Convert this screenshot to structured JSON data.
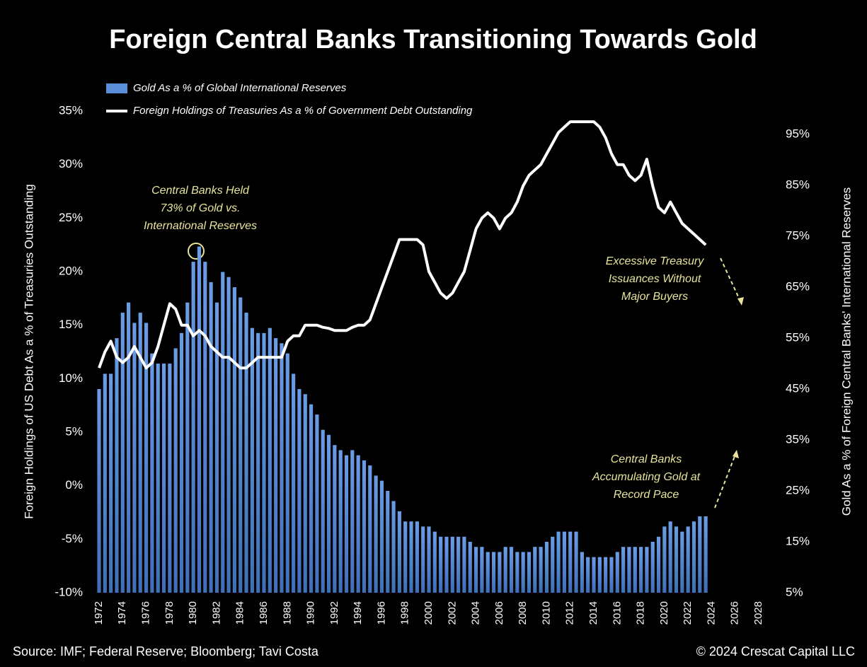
{
  "chart_data": {
    "type": "bar-line",
    "title": "Foreign Central Banks Transitioning Towards Gold",
    "source": "Source: IMF; Federal Reserve; Bloomberg; Tavi Costa",
    "copyright": "© 2024 Crescat Capital LLC",
    "y_label": "Foreign Holdings of US Debt As a % of  Treasuries Outstanding",
    "y2_label": "Gold As a % of Foreign Central Banks' International Reserves",
    "xlim": [
      1971.7,
      2028.6
    ],
    "xticks": [
      1972,
      1974,
      1976,
      1978,
      1980,
      1982,
      1984,
      1986,
      1988,
      1990,
      1992,
      1994,
      1996,
      1998,
      2000,
      2002,
      2004,
      2006,
      2008,
      2010,
      2012,
      2014,
      2016,
      2018,
      2020,
      2022,
      2024,
      2026,
      2028
    ],
    "ylim": [
      -10,
      35
    ],
    "yticks": [
      {
        "value": -10,
        "label": "-10%"
      },
      {
        "value": -5,
        "label": "-5%"
      },
      {
        "value": 0,
        "label": "0%"
      },
      {
        "value": 5,
        "label": "5%"
      },
      {
        "value": 10,
        "label": "10%"
      },
      {
        "value": 15,
        "label": "15%"
      },
      {
        "value": 20,
        "label": "20%"
      },
      {
        "value": 25,
        "label": "25%"
      },
      {
        "value": 30,
        "label": "30%"
      },
      {
        "value": 35,
        "label": "35%"
      }
    ],
    "y2lim": [
      5,
      99.6
    ],
    "y2ticks": [
      {
        "value": 5,
        "label": "5%"
      },
      {
        "value": 15,
        "label": "15%"
      },
      {
        "value": 25,
        "label": "25%"
      },
      {
        "value": 35,
        "label": "35%"
      },
      {
        "value": 45,
        "label": "45%"
      },
      {
        "value": 55,
        "label": "55%"
      },
      {
        "value": 65,
        "label": "65%"
      },
      {
        "value": 75,
        "label": "75%"
      },
      {
        "value": 85,
        "label": "85%"
      },
      {
        "value": 95,
        "label": "95%"
      }
    ],
    "x": [
      1972.0,
      1972.5,
      1973.0,
      1973.5,
      1974.0,
      1974.5,
      1975.0,
      1975.5,
      1976.0,
      1976.5,
      1977.0,
      1977.5,
      1978.0,
      1978.5,
      1979.0,
      1979.5,
      1980.0,
      1980.5,
      1981.0,
      1981.5,
      1982.0,
      1982.5,
      1983.0,
      1983.5,
      1984.0,
      1984.5,
      1985.0,
      1985.5,
      1986.0,
      1986.5,
      1987.0,
      1987.5,
      1988.0,
      1988.5,
      1989.0,
      1989.5,
      1990.0,
      1990.5,
      1991.0,
      1991.5,
      1992.0,
      1992.5,
      1993.0,
      1993.5,
      1994.0,
      1994.5,
      1995.0,
      1995.5,
      1996.0,
      1996.5,
      1997.0,
      1997.5,
      1998.0,
      1998.5,
      1999.0,
      1999.5,
      2000.0,
      2000.5,
      2001.0,
      2001.5,
      2002.0,
      2002.5,
      2003.0,
      2003.5,
      2004.0,
      2004.5,
      2005.0,
      2005.5,
      2006.0,
      2006.5,
      2007.0,
      2007.5,
      2008.0,
      2008.5,
      2009.0,
      2009.5,
      2010.0,
      2010.5,
      2011.0,
      2011.5,
      2012.0,
      2012.5,
      2013.0,
      2013.5,
      2014.0,
      2014.5,
      2015.0,
      2015.5,
      2016.0,
      2016.5,
      2017.0,
      2017.5,
      2018.0,
      2018.5,
      2019.0,
      2019.5,
      2020.0,
      2020.5,
      2021.0,
      2021.5,
      2022.0,
      2022.5,
      2023.0,
      2023.5
    ],
    "series": [
      {
        "name": "Gold As a % of Global International Reserves",
        "kind": "bar",
        "axis": "y2",
        "color": "#5a8ed8",
        "values": [
          45,
          48,
          48,
          55,
          60,
          62,
          58,
          60,
          58,
          52,
          50,
          50,
          50,
          53,
          56,
          62,
          70,
          73,
          70,
          66,
          62,
          68,
          67,
          65,
          63,
          60,
          57,
          56,
          56,
          57,
          55,
          54,
          52,
          48,
          45,
          44,
          42,
          40,
          37,
          36,
          34,
          33,
          32,
          33,
          32,
          31,
          30,
          28,
          27,
          25,
          23,
          21,
          19,
          19,
          19,
          18,
          18,
          17,
          16,
          16,
          16,
          16,
          16,
          15,
          14,
          14,
          13,
          13,
          13,
          14,
          14,
          13,
          13,
          13,
          14,
          14,
          15,
          16,
          17,
          17,
          17,
          17,
          13,
          12,
          12,
          12,
          12,
          12,
          13,
          14,
          14,
          14,
          14,
          14,
          15,
          16,
          18,
          19,
          18,
          17,
          18,
          19,
          20,
          20
        ]
      },
      {
        "name": "Foreign Holdings of Treasuries As a % of Government Debt Outstanding",
        "kind": "line",
        "axis": "y",
        "color": "#ffffff",
        "values": [
          11,
          12.5,
          13.5,
          12,
          11.5,
          12,
          13,
          12,
          11,
          11.5,
          13,
          15,
          17,
          16.5,
          15,
          15,
          14,
          14.5,
          14,
          13,
          12.5,
          12,
          12,
          11.5,
          11,
          11,
          11.5,
          12,
          12,
          12,
          12,
          12,
          13.5,
          14,
          14,
          15,
          15,
          15,
          14.8,
          14.7,
          14.5,
          14.5,
          14.5,
          14.8,
          15,
          15,
          15.5,
          17,
          18.5,
          20,
          21.5,
          23,
          23,
          23,
          23,
          22.5,
          20,
          19,
          18,
          17.5,
          18,
          19,
          20,
          22,
          24,
          25,
          25.5,
          25,
          24,
          25,
          25.5,
          26.5,
          28,
          29,
          29.5,
          30,
          31,
          32,
          33,
          33.5,
          34,
          34,
          34,
          34,
          34,
          33.5,
          32.5,
          31,
          30,
          30,
          29,
          28.5,
          29,
          30.5,
          28,
          26,
          25.5,
          26.5,
          25.5,
          24.5,
          24,
          23.5,
          23,
          22.5
        ]
      }
    ],
    "annotations": [
      {
        "lines": [
          "Central Banks Held",
          "73% of Gold vs.",
          "International Reserves"
        ]
      },
      {
        "lines": [
          "Excessive Treasury",
          "Issuances Without",
          "Major Buyers"
        ]
      },
      {
        "lines": [
          "Central Banks",
          "Accumulating Gold at",
          "Record Pace"
        ]
      }
    ]
  }
}
